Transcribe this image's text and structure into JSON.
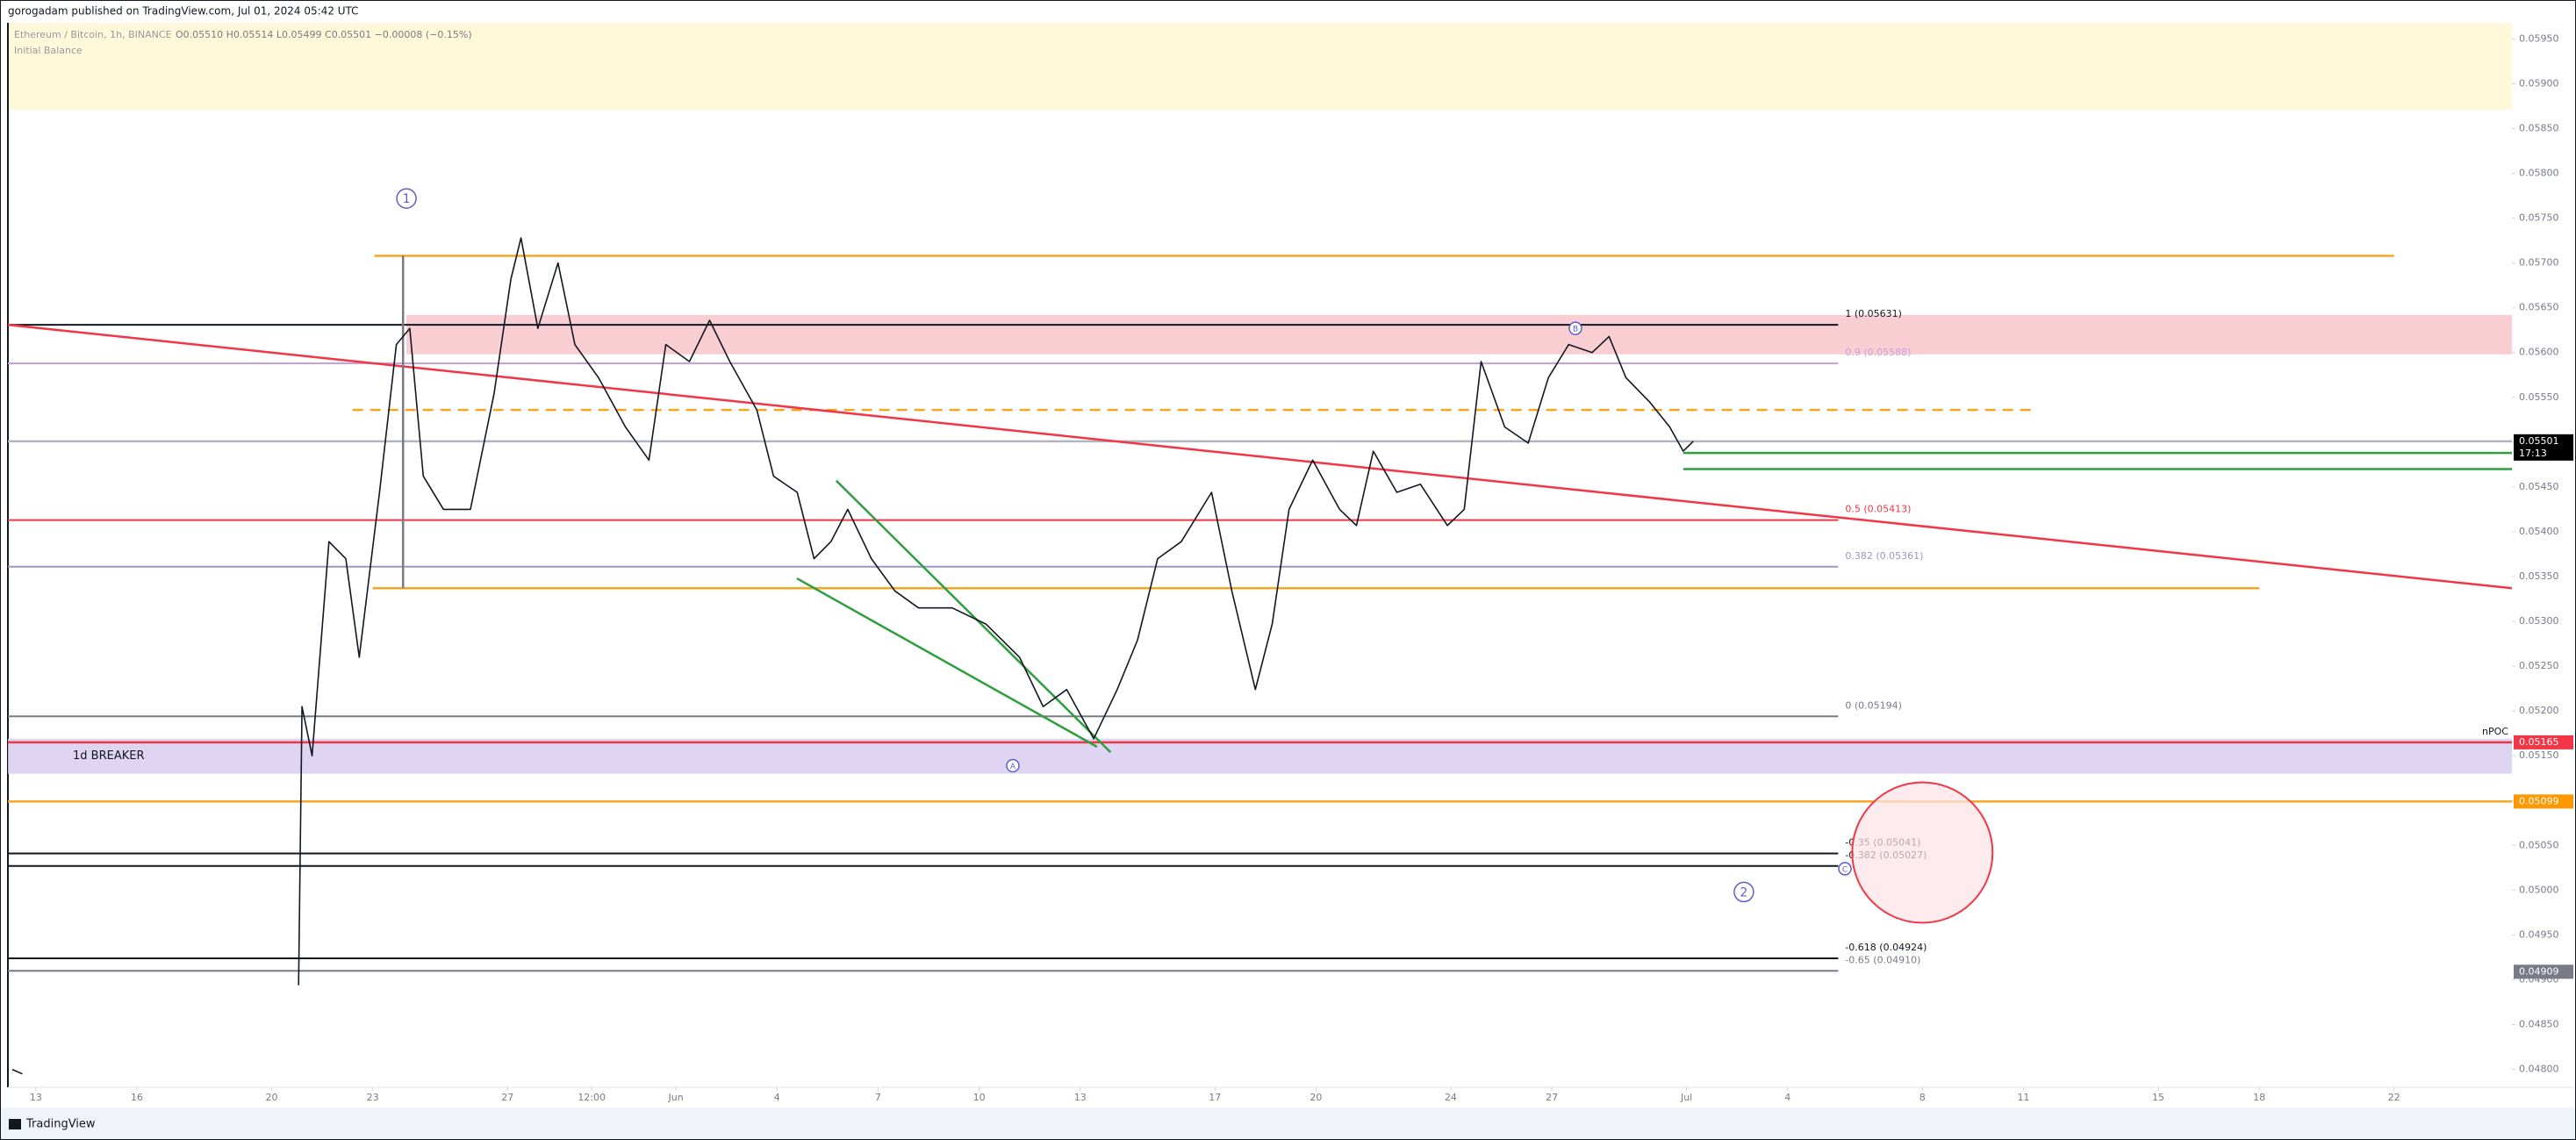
{
  "header": {
    "publisher": "gorogadam published on TradingView.com, Jul 01, 2024 05:42 UTC",
    "symbol": "Ethereum / Bitcoin, 1h, BINANCE",
    "ohlc": "O0.05510 H0.05514 L0.05499 C0.05501 −0.00008 (−0.15%)",
    "indicator": "Initial Balance"
  },
  "footer": {
    "brand": "TradingView"
  },
  "chart_data": {
    "type": "line",
    "color": "#131722",
    "x": [
      -0.7,
      -0.4,
      4,
      7.8,
      7.9,
      8.2,
      8.7,
      9.2,
      9.6,
      10.2,
      10.7,
      11.1,
      11.5,
      12.1,
      12.9,
      13.6,
      14.1,
      14.4,
      14.9,
      15.5,
      16,
      16.7,
      17.5,
      18.2,
      18.7,
      19.4,
      20,
      20.6,
      21.4,
      21.9,
      22.6,
      23.1,
      23.6,
      24.1,
      24.8,
      25.5,
      26.2,
      27.2,
      28.2,
      29.2,
      29.9,
      30.6,
      31.4,
      32.1,
      32.7,
      33.3,
      34,
      34.9,
      35.5,
      36.2,
      36.7,
      37.2,
      37.9,
      38.7,
      39.2,
      39.7,
      40.4,
      41.1,
      41.9,
      42.4,
      42.9,
      43.6,
      44.3,
      44.9,
      45.5,
      46.2,
      46.7,
      47.2,
      47.9,
      48.5,
      48.9,
      49.2
    ],
    "values": [
      0.048,
      0.04795,
      null,
      0.04894,
      0.05205,
      0.0515,
      0.05389,
      0.0537,
      0.0526,
      0.05444,
      0.05609,
      0.05627,
      0.05462,
      0.05425,
      0.05425,
      0.05554,
      0.05682,
      0.05728,
      0.05627,
      0.057,
      0.05609,
      0.05572,
      0.05517,
      0.0548,
      0.05609,
      0.0559,
      0.05636,
      0.0559,
      0.05536,
      0.05462,
      0.05444,
      0.0537,
      0.05389,
      0.05425,
      0.0537,
      0.05334,
      0.05315,
      0.05315,
      0.05297,
      0.0526,
      0.05205,
      0.05224,
      0.05169,
      0.05224,
      0.05279,
      0.0537,
      0.05389,
      0.05444,
      0.05334,
      0.05224,
      0.05297,
      0.05425,
      0.0548,
      0.05425,
      0.05407,
      0.0549,
      0.05444,
      0.05453,
      0.05407,
      0.05425,
      0.0559,
      0.05517,
      0.05499,
      0.05572,
      0.05609,
      0.056,
      0.05618,
      0.05572,
      0.05545,
      0.05517,
      0.0549,
      0.05501
    ],
    "xlim": [
      -0.83,
      73.5
    ],
    "xticks": [
      {
        "value": 0,
        "label": "13"
      },
      {
        "value": 3,
        "label": "16"
      },
      {
        "value": 7,
        "label": "20"
      },
      {
        "value": 10,
        "label": "23"
      },
      {
        "value": 14,
        "label": "27"
      },
      {
        "value": 16.5,
        "label": "12:00"
      },
      {
        "value": 19,
        "label": "Jun"
      },
      {
        "value": 22,
        "label": "4"
      },
      {
        "value": 25,
        "label": "7"
      },
      {
        "value": 28,
        "label": "10"
      },
      {
        "value": 31,
        "label": "13"
      },
      {
        "value": 35,
        "label": "17"
      },
      {
        "value": 38,
        "label": "20"
      },
      {
        "value": 42,
        "label": "24"
      },
      {
        "value": 45,
        "label": "27"
      },
      {
        "value": 49,
        "label": "Jul"
      },
      {
        "value": 52,
        "label": "4"
      },
      {
        "value": 56,
        "label": "8"
      },
      {
        "value": 59,
        "label": "11"
      },
      {
        "value": 63,
        "label": "15"
      },
      {
        "value": 66,
        "label": "18"
      },
      {
        "value": 70,
        "label": "22"
      }
    ],
    "ylim": [
      0.0478,
      0.05968
    ],
    "yticks": [
      {
        "value": 0.0595,
        "label": "0.05950"
      },
      {
        "value": 0.059,
        "label": "0.05900"
      },
      {
        "value": 0.0585,
        "label": "0.05850"
      },
      {
        "value": 0.058,
        "label": "0.05800"
      },
      {
        "value": 0.0575,
        "label": "0.05750"
      },
      {
        "value": 0.057,
        "label": "0.05700"
      },
      {
        "value": 0.0565,
        "label": "0.05650"
      },
      {
        "value": 0.056,
        "label": "0.05600"
      },
      {
        "value": 0.0555,
        "label": "0.05550"
      },
      {
        "value": 0.055,
        "label": "0.05500"
      },
      {
        "value": 0.0545,
        "label": "0.05450"
      },
      {
        "value": 0.054,
        "label": "0.05400"
      },
      {
        "value": 0.0535,
        "label": "0.05350"
      },
      {
        "value": 0.053,
        "label": "0.05300"
      },
      {
        "value": 0.0525,
        "label": "0.05250"
      },
      {
        "value": 0.052,
        "label": "0.05200"
      },
      {
        "value": 0.0515,
        "label": "0.05150"
      },
      {
        "value": 0.051,
        "label": "0.05100"
      },
      {
        "value": 0.0505,
        "label": "0.05050"
      },
      {
        "value": 0.05,
        "label": "0.05000"
      },
      {
        "value": 0.0495,
        "label": "0.04950"
      },
      {
        "value": 0.049,
        "label": "0.04900"
      },
      {
        "value": 0.0485,
        "label": "0.04850"
      },
      {
        "value": 0.048,
        "label": "0.04800"
      }
    ],
    "zones": [
      {
        "top": 0.05642,
        "bottom": 0.05598,
        "from": 11.0,
        "to": 73.5,
        "color": "#f7c5cb"
      },
      {
        "top": 0.05169,
        "bottom": 0.0513,
        "from": -0.83,
        "to": 73.5,
        "color": "#d9cdee",
        "label": "1d BREAKER"
      }
    ],
    "fib": {
      "from": -0.83,
      "to": 53.5,
      "levels": [
        {
          "label": "1 (0.05631)",
          "price": 0.05631,
          "color": "#131722"
        },
        {
          "label": "0.9 (0.05588)",
          "price": 0.05588,
          "color": "#c9a0dc"
        },
        {
          "label": "0.5 (0.05413)",
          "price": 0.05413,
          "color": "#f23645"
        },
        {
          "label": "0.382 (0.05361)",
          "price": 0.05361,
          "color": "#9598c9"
        },
        {
          "label": "0 (0.05194)",
          "price": 0.05194,
          "color": "#787b86"
        },
        {
          "label": "-0.35 (0.05041)",
          "price": 0.05041,
          "color": "#131722"
        },
        {
          "label": "-0.382 (0.05027)",
          "price": 0.05027,
          "color": "#131722"
        },
        {
          "label": "-0.618 (0.04924)",
          "price": 0.04924,
          "color": "#131722"
        },
        {
          "label": "-0.65 (0.04910)",
          "price": 0.0491,
          "color": "#787b86"
        }
      ]
    },
    "hlines": [
      {
        "price": 0.05708,
        "from": 10.05,
        "to": 70,
        "color": "#f5a623",
        "dashed": false
      },
      {
        "price": 0.05337,
        "from": 10,
        "to": 66,
        "color": "#f5a623",
        "dashed": false
      },
      {
        "price": 0.05536,
        "from": 9.4,
        "to": 59.3,
        "color": "#f5a623",
        "dashed": true
      },
      {
        "price": 0.05488,
        "from": 48.9,
        "to": 73.5,
        "color": "#2e9e3e",
        "dashed": false
      },
      {
        "price": 0.0547,
        "from": 48.9,
        "to": 73.5,
        "color": "#2e9e3e",
        "dashed": false
      },
      {
        "price": 0.05501,
        "from": -0.83,
        "to": 73.5,
        "color": "#b2b5be",
        "dashed": false
      },
      {
        "price": 0.05165,
        "from": -0.83,
        "to": 73.5,
        "color": "#f23645",
        "dashed": false
      },
      {
        "price": 0.05099,
        "from": -0.83,
        "to": 73.5,
        "color": "#f5a623",
        "dashed": false
      }
    ],
    "trendlines": [
      {
        "x": [
          -0.83,
          73.5
        ],
        "prices": [
          0.05631,
          0.05337
        ],
        "color": "#f23645"
      },
      {
        "x": [
          23.76,
          31.9
        ],
        "prices": [
          0.05457,
          0.05154
        ],
        "color": "#2e9e3e"
      },
      {
        "x": [
          22.59,
          31.5
        ],
        "prices": [
          0.05348,
          0.0516
        ],
        "color": "#2e9e3e"
      },
      {
        "x": [
          10.9,
          10.9
        ],
        "prices": [
          0.05708,
          0.05337
        ],
        "color": "#787b86"
      }
    ],
    "circle": {
      "x": 56.0,
      "price": 0.05042
    },
    "markers": [
      {
        "label": "1",
        "x": 11.0,
        "price": 0.05772
      },
      {
        "label": "2",
        "x": 50.7,
        "price": 0.04998
      },
      {
        "label": "A",
        "x": 29.0,
        "price": 0.05139
      },
      {
        "label": "B",
        "x": 45.7,
        "price": 0.05627
      },
      {
        "label": "C",
        "x": 53.7,
        "price": 0.05024
      }
    ],
    "badges": [
      {
        "price": 0.05501,
        "color": "#000000",
        "sub": "17:13"
      },
      {
        "price": 0.05165,
        "color": "#f23645"
      },
      {
        "price": 0.05099,
        "color": "#ff9800"
      },
      {
        "price": 0.04909,
        "color": "#787b86"
      }
    ],
    "npoc": {
      "label": "nPOC",
      "price": 0.05165
    }
  }
}
